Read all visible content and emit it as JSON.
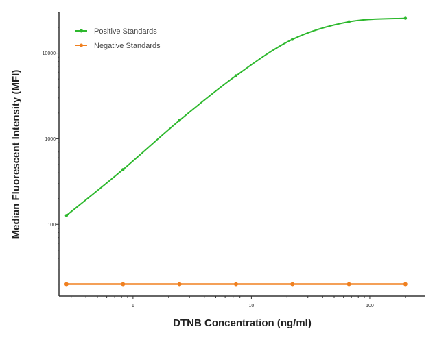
{
  "chart_data": {
    "type": "line",
    "title": "",
    "xlabel": "DTNB Concentration (ng/ml)",
    "ylabel": "Median  Fluorescent Intensity  (MFI)",
    "xscale": "log",
    "yscale": "log",
    "xlim": [
      0.237,
      295
    ],
    "ylim": [
      14.5,
      30000
    ],
    "xticks": [
      "1",
      "10",
      "100"
    ],
    "yticks": [
      "100",
      "1000",
      "10000"
    ],
    "grid": false,
    "legend_position": "top-left",
    "x": [
      0.274,
      0.823,
      2.47,
      7.41,
      22.2,
      66.7,
      200
    ],
    "series": [
      {
        "name": "Positive Standards",
        "color": "#2db82d",
        "values": [
          127,
          437,
          1640,
          5450,
          14500,
          23300,
          25600
        ]
      },
      {
        "name": "Negative Standards",
        "color": "#f08020",
        "values": [
          20,
          20,
          20,
          20,
          20,
          20,
          20
        ]
      }
    ]
  }
}
